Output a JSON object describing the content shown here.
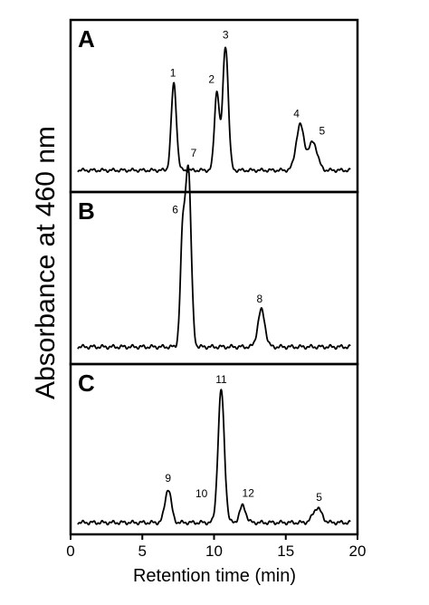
{
  "chart_data": {
    "type": "line",
    "xlabel": "Retention time (min)",
    "ylabel": "Absorbance at 460 nm",
    "xlim": [
      0,
      20
    ],
    "xticks": [
      0,
      5,
      10,
      15,
      20
    ],
    "tick_labels": [
      "0",
      "5",
      "10",
      "15",
      "20"
    ],
    "grid": false,
    "panels": [
      {
        "label": "A",
        "peaks": [
          {
            "label": "1",
            "x": 7.2,
            "height": 0.46
          },
          {
            "label": "2",
            "x": 10.2,
            "height": 0.42
          },
          {
            "label": "3",
            "x": 10.8,
            "height": 0.66
          },
          {
            "label": "4",
            "x": 16.0,
            "height": 0.24
          },
          {
            "label": "5",
            "x": 16.9,
            "height": 0.15
          }
        ]
      },
      {
        "label": "B",
        "peaks": [
          {
            "label": "6",
            "x": 7.8,
            "height": 0.47
          },
          {
            "label": "7",
            "x": 8.2,
            "height": 0.82
          },
          {
            "label": "8",
            "x": 13.3,
            "height": 0.17
          }
        ]
      },
      {
        "label": "C",
        "peaks": [
          {
            "label": "9",
            "x": 6.8,
            "height": 0.16
          },
          {
            "label": "10",
            "x": 9.0,
            "height": 0.0
          },
          {
            "label": "11",
            "x": 10.5,
            "height": 0.63
          },
          {
            "label": "12",
            "x": 12.0,
            "height": 0.08
          },
          {
            "label": "5",
            "x": 17.2,
            "height": 0.07
          }
        ]
      }
    ]
  }
}
